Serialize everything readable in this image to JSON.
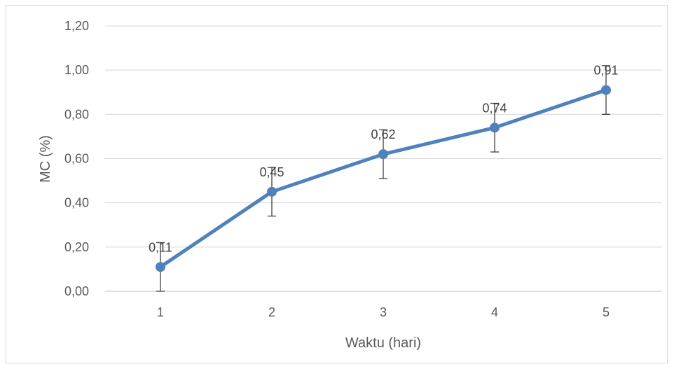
{
  "chart_data": {
    "type": "line",
    "x": [
      1,
      2,
      3,
      4,
      5
    ],
    "categories": [
      "1",
      "2",
      "3",
      "4",
      "5"
    ],
    "series": [
      {
        "values": [
          0.11,
          0.45,
          0.62,
          0.74,
          0.91
        ],
        "error_minus": [
          0.11,
          0.11,
          0.11,
          0.11,
          0.11
        ],
        "error_plus": [
          0.11,
          0.11,
          0.11,
          0.11,
          0.11
        ],
        "color": "#4F81BD"
      }
    ],
    "data_labels": [
      "0,11",
      "0,45",
      "0,62",
      "0,74",
      "0,91"
    ],
    "yticks": [
      "0,00",
      "0,20",
      "0,40",
      "0,60",
      "0,80",
      "1,00",
      "1,20"
    ],
    "ylim": [
      0,
      1.2
    ],
    "xlabel": "Waktu (hari)",
    "ylabel": "MC (%)",
    "grid": "horizontal",
    "gridline_color": "#d9d9d9",
    "error_bar_color": "#404040",
    "legend": "none"
  }
}
